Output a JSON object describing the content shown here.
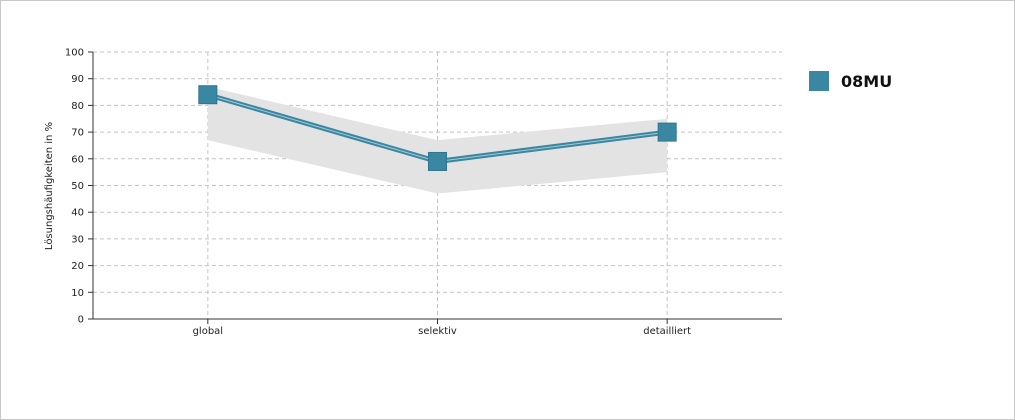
{
  "chart_data": {
    "type": "line",
    "categories": [
      "global",
      "selektiv",
      "detailliert"
    ],
    "series": [
      {
        "name": "08MU",
        "values": [
          84,
          59,
          70
        ]
      }
    ],
    "band": {
      "lower": [
        67,
        47,
        55
      ],
      "upper": [
        87,
        67,
        75
      ]
    },
    "ylabel": "Lösungshäufigkeiten in %",
    "ylim": [
      0,
      100
    ],
    "yticks": [
      0,
      10,
      20,
      30,
      40,
      50,
      60,
      70,
      80,
      90,
      100
    ],
    "grid": true,
    "legend_position": "right"
  },
  "colors": {
    "series": "#3a87a1",
    "band": "#e3e3e3",
    "grid": "#c4c4c4",
    "axis": "#333333"
  }
}
